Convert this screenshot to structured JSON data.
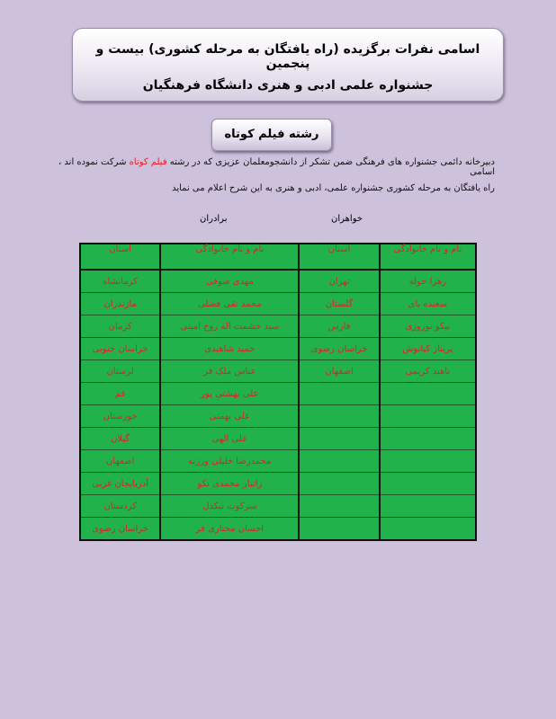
{
  "title": {
    "line1": "اسامی نفرات برگزیده (راه یافتگان به  مرحله کشوری) بیست و پنجمین",
    "line2": "جشنواره علمی ادبی و هنری دانشگاه فرهنگیان"
  },
  "section": "رشته فیلم کوتاه",
  "intro": {
    "part1": "دبیرخانه دائمی جشنواره های فرهنگی ضمن تشکر از دانشجومعلمان عزیزی که در رشته ",
    "highlight": "فیلم کوتاه",
    "part2": " شرکت نموده اند ، اسامی",
    "line2": "راه یافتگان به مرحله کشوری جشنواره علمی، ادبی و هنری به این شرح اعلام می نماید"
  },
  "groups": {
    "sisters": "خواهران",
    "brothers": "برادران"
  },
  "table": {
    "headers": [
      "نام و نام خانوادگی",
      "استان",
      "نام و نام خانوادگی",
      "استان"
    ],
    "rows": [
      [
        "زهرا حوله",
        "تهران",
        "مهدی صوفی",
        "کرمانشاه"
      ],
      [
        "سعیده بای",
        "گلستان",
        "محمد تقی فضلی",
        "مازندران"
      ],
      [
        "نیکو نوروزی",
        "فارس",
        "سید حشمت اله روح امینی",
        "کرمان"
      ],
      [
        "پریناز کیانوش",
        "خراسان رضوی",
        "حمید شاهیدی",
        "خراسان جنوبی"
      ],
      [
        "ناهید کریمی",
        "اصفهان",
        "عباس ملک فر",
        "لرستان"
      ],
      [
        "",
        "",
        "علی بهشتی پور",
        "قم"
      ],
      [
        "",
        "",
        "علی بهمنی",
        "خوزستان"
      ],
      [
        "",
        "",
        "علی الهی",
        "گیلان"
      ],
      [
        "",
        "",
        "محمدرضا خلیلی ورزنه",
        "اصفهان"
      ],
      [
        "",
        "",
        "زانیار محمدی نکو",
        "آذربایجان غربی"
      ],
      [
        "",
        "",
        "سرکوت نیکدل",
        "کردستان"
      ],
      [
        "",
        "",
        "احسان مختاری فر",
        "خراسان رضوی"
      ]
    ]
  },
  "colors": {
    "background": "#cdc1dc",
    "table_fill": "#22b24b",
    "table_text": "#d4262a",
    "highlight": "#e0202a"
  }
}
